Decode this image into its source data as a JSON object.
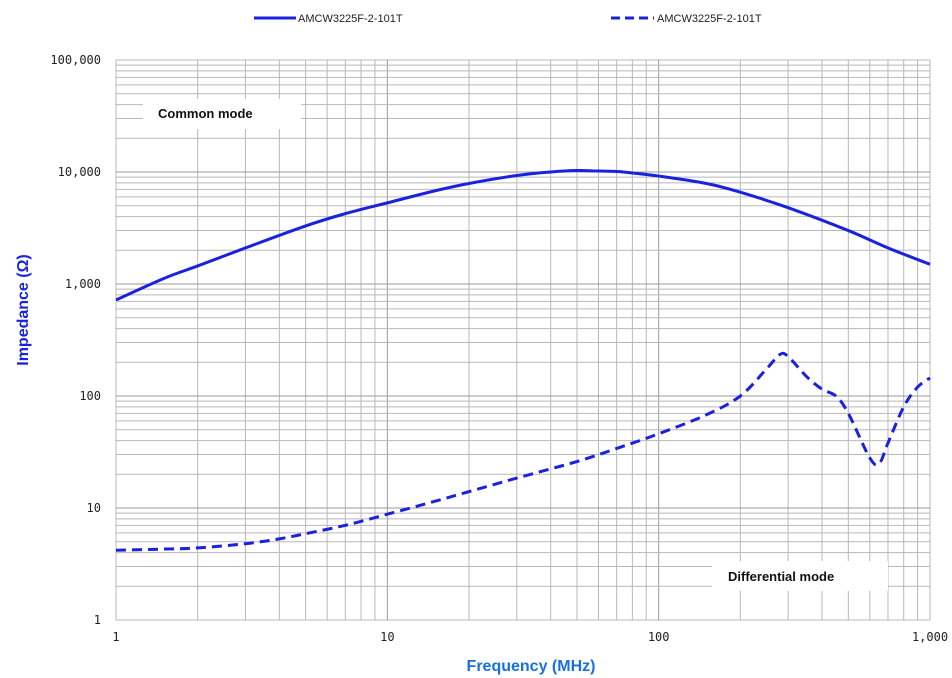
{
  "chart_data": {
    "type": "line",
    "xlabel": "Frequency (MHz)",
    "ylabel": "Impedance (Ω)",
    "x_scale": "log",
    "y_scale": "log",
    "xlim": [
      1,
      1000
    ],
    "ylim": [
      1,
      100000
    ],
    "grid": true,
    "legend_position": "top",
    "x_ticks": [
      {
        "value": 1,
        "label": "1"
      },
      {
        "value": 10,
        "label": "10"
      },
      {
        "value": 100,
        "label": "100"
      },
      {
        "value": 1000,
        "label": "1,000"
      }
    ],
    "y_ticks": [
      {
        "value": 1,
        "label": "1"
      },
      {
        "value": 10,
        "label": "10"
      },
      {
        "value": 100,
        "label": "100"
      },
      {
        "value": 1000,
        "label": "1,000"
      },
      {
        "value": 10000,
        "label": "10,000"
      },
      {
        "value": 100000,
        "label": "100,000"
      }
    ],
    "annotations": [
      "Common mode",
      "Differential mode"
    ],
    "colors": {
      "series": "#1a22dc",
      "ylabel": "#1a22dc",
      "xlabel": "#1a6fe0",
      "grid": "#b8b8b8"
    },
    "series": [
      {
        "name": "AMCW3225F-2-101T",
        "style": "solid",
        "x": [
          1,
          1.5,
          2,
          3,
          5,
          7,
          10,
          15,
          20,
          30,
          40,
          50,
          60,
          70,
          80,
          100,
          150,
          200,
          300,
          500,
          700,
          1000
        ],
        "y": [
          720,
          1120,
          1450,
          2100,
          3300,
          4250,
          5300,
          6800,
          7900,
          9300,
          10000,
          10300,
          10200,
          10100,
          9800,
          9200,
          7900,
          6600,
          4800,
          3000,
          2100,
          1500
        ]
      },
      {
        "name": "AMCW3225F-2-101T",
        "style": "dashed",
        "x": [
          1,
          1.5,
          2,
          3,
          4,
          5,
          7,
          10,
          15,
          20,
          30,
          50,
          70,
          100,
          150,
          200,
          250,
          280,
          300,
          350,
          400,
          450,
          500,
          600,
          650,
          700,
          800,
          900,
          1000
        ],
        "y": [
          4.2,
          4.3,
          4.4,
          4.8,
          5.3,
          5.9,
          7.0,
          8.8,
          11.5,
          14.0,
          18.5,
          26.0,
          34.0,
          46.0,
          68.0,
          100,
          175,
          235,
          225,
          150,
          115,
          100,
          70,
          28,
          25,
          38,
          80,
          120,
          145
        ]
      }
    ]
  }
}
